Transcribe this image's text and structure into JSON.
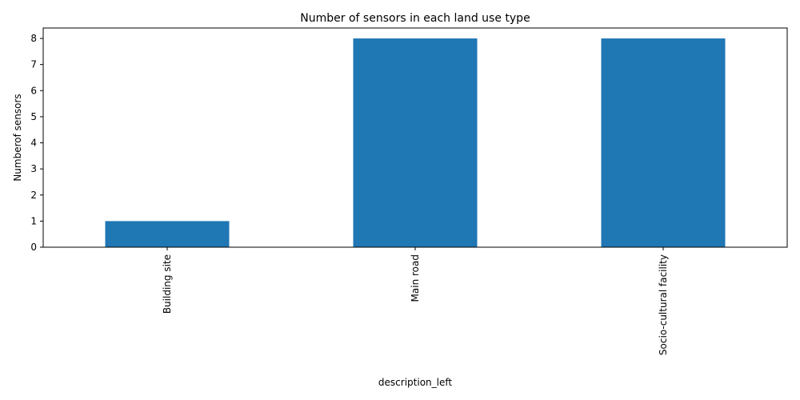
{
  "chart_data": {
    "type": "bar",
    "title": "Number of sensors in each land use type",
    "xlabel": "description_left",
    "ylabel": "Numberof sensors",
    "categories": [
      "Building site",
      "Main road",
      "Socio-cultural facility"
    ],
    "values": [
      1,
      8,
      8
    ],
    "ylim": [
      0,
      8.4
    ],
    "yticks": [
      0,
      1,
      2,
      3,
      4,
      5,
      6,
      7,
      8
    ],
    "bar_color": "#1f77b4",
    "grid": false,
    "legend": "none"
  }
}
